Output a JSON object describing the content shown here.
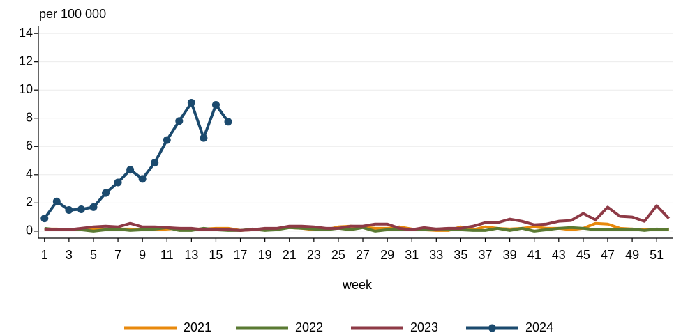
{
  "chart_data": {
    "type": "line",
    "y_label": "per 100 000",
    "x_label": "week",
    "x": [
      1,
      2,
      3,
      4,
      5,
      6,
      7,
      8,
      9,
      10,
      11,
      12,
      13,
      14,
      15,
      16,
      17,
      18,
      19,
      20,
      21,
      22,
      23,
      24,
      25,
      26,
      27,
      28,
      29,
      30,
      31,
      32,
      33,
      34,
      35,
      36,
      37,
      38,
      39,
      40,
      41,
      42,
      43,
      44,
      45,
      46,
      47,
      48,
      49,
      50,
      51,
      52
    ],
    "xlim": [
      0.5,
      52.3
    ],
    "xticks": [
      1,
      3,
      5,
      7,
      9,
      11,
      13,
      15,
      17,
      19,
      21,
      23,
      25,
      27,
      29,
      31,
      33,
      35,
      37,
      39,
      41,
      43,
      45,
      47,
      49,
      51
    ],
    "ylim": [
      -0.5,
      14.5
    ],
    "yticks": [
      0,
      2,
      4,
      6,
      8,
      10,
      12,
      14
    ],
    "grid": true,
    "legend": "bottom",
    "series": [
      {
        "name": "2021",
        "color": "#e8890c",
        "markers": false,
        "values": [
          0.15,
          0.15,
          0.1,
          0.1,
          0.1,
          0.1,
          0.15,
          0.15,
          0.1,
          0.1,
          0.15,
          0.2,
          0.15,
          0.15,
          0.2,
          0.2,
          0.05,
          0.1,
          0.15,
          0.15,
          0.25,
          0.2,
          0.1,
          0.1,
          0.3,
          0.35,
          0.3,
          0.2,
          0.2,
          0.3,
          0.15,
          0.1,
          0.05,
          0.05,
          0.3,
          0.1,
          0.3,
          0.2,
          0.15,
          0.2,
          0.3,
          0.2,
          0.2,
          0.1,
          0.2,
          0.55,
          0.5,
          0.2,
          0.15,
          0.1,
          0.1,
          0.15
        ]
      },
      {
        "name": "2022",
        "color": "#5a7a32",
        "markers": false,
        "values": [
          0.2,
          0.1,
          0.1,
          0.1,
          0,
          0.1,
          0.15,
          0.05,
          0.1,
          0.15,
          0.25,
          0.05,
          0.05,
          0.2,
          0.1,
          0.05,
          0.05,
          0.15,
          0.05,
          0.1,
          0.25,
          0.2,
          0.15,
          0.1,
          0.2,
          0.1,
          0.25,
          0,
          0.1,
          0.15,
          0.1,
          0.1,
          0.15,
          0.15,
          0.1,
          0.05,
          0.05,
          0.2,
          0.05,
          0.2,
          0,
          0.1,
          0.2,
          0.25,
          0.2,
          0.1,
          0.1,
          0.1,
          0.15,
          0.05,
          0.15,
          0.1
        ]
      },
      {
        "name": "2023",
        "color": "#8e3a46",
        "markers": false,
        "values": [
          0.1,
          0.1,
          0.1,
          0.2,
          0.3,
          0.35,
          0.3,
          0.55,
          0.3,
          0.3,
          0.25,
          0.2,
          0.2,
          0.1,
          0.15,
          0.1,
          0.05,
          0.1,
          0.2,
          0.2,
          0.35,
          0.35,
          0.3,
          0.2,
          0.2,
          0.35,
          0.35,
          0.5,
          0.5,
          0.2,
          0.1,
          0.25,
          0.15,
          0.2,
          0.2,
          0.35,
          0.6,
          0.6,
          0.85,
          0.7,
          0.45,
          0.5,
          0.7,
          0.75,
          1.25,
          0.8,
          1.7,
          1.05,
          1.0,
          0.7,
          1.8,
          0.9
        ]
      },
      {
        "name": "2024",
        "color": "#1b4a6e",
        "markers": true,
        "values": [
          0.9,
          2.1,
          1.5,
          1.55,
          1.7,
          2.7,
          3.45,
          4.35,
          3.7,
          4.85,
          6.45,
          7.8,
          9.1,
          6.6,
          8.95,
          7.75,
          null,
          null,
          null,
          null,
          null,
          null,
          null,
          null,
          null,
          null,
          null,
          null,
          null,
          null,
          null,
          null,
          null,
          null,
          null,
          null,
          null,
          null,
          null,
          null,
          null,
          null,
          null,
          null,
          null,
          null,
          null,
          null,
          null,
          null,
          null,
          null
        ]
      }
    ]
  }
}
